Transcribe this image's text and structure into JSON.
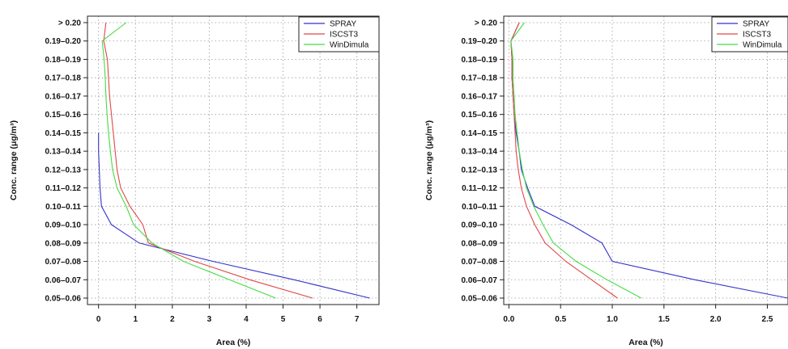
{
  "chart_data": [
    {
      "type": "line",
      "ylabel": "Conc. range (μg/m³)",
      "xlabel": "Area (%)",
      "categories": [
        "0.05–0.06",
        "0.06–0.07",
        "0.07–0.08",
        "0.08–0.09",
        "0.09–0.10",
        "0.10–0.11",
        "0.11–0.12",
        "0.12–0.13",
        "0.13–0.14",
        "0.14–0.15",
        "0.15–0.16",
        "0.16–0.17",
        "0.17–0.18",
        "0.18–0.19",
        "0.19–0.20",
        "> 0.20"
      ],
      "xticks": [
        "0",
        "1",
        "2",
        "3",
        "4",
        "5",
        "6",
        "7"
      ],
      "xtick_values": [
        0,
        1,
        2,
        3,
        4,
        5,
        6,
        7
      ],
      "xlim": [
        -0.3,
        7.6
      ],
      "grid": true,
      "legend_position": "top-right",
      "series": [
        {
          "name": "SPRAY",
          "color": "#3333cc",
          "values": [
            7.35,
            5.3,
            3.1,
            1.1,
            0.35,
            0.08,
            0.04,
            0.02,
            0.0,
            0.0,
            null,
            null,
            null,
            null,
            null,
            null
          ]
        },
        {
          "name": "ISCST3",
          "color": "#e04848",
          "values": [
            5.8,
            4.1,
            2.6,
            1.35,
            1.2,
            0.85,
            0.6,
            0.5,
            0.45,
            0.4,
            0.35,
            0.3,
            0.27,
            0.24,
            0.14,
            0.2
          ]
        },
        {
          "name": "WinDimula",
          "color": "#44dd44",
          "values": [
            4.8,
            3.55,
            2.3,
            1.45,
            0.95,
            0.75,
            0.5,
            0.38,
            0.32,
            0.27,
            0.23,
            0.2,
            0.18,
            0.15,
            0.1,
            0.75
          ]
        }
      ]
    },
    {
      "type": "line",
      "ylabel": "Conc. range (μg/m³)",
      "xlabel": "Area (%)",
      "categories": [
        "0.05–0.06",
        "0.06–0.07",
        "0.07–0.08",
        "0.08–0.09",
        "0.09–0.10",
        "0.10–0.11",
        "0.11–0.12",
        "0.12–0.13",
        "0.13–0.14",
        "0.14–0.15",
        "0.15–0.16",
        "0.16–0.17",
        "0.17–0.18",
        "0.18–0.19",
        "0.19–0.20",
        "> 0.20"
      ],
      "xticks": [
        "0.0",
        "0.5",
        "1.0",
        "1.5",
        "2.0",
        "2.5"
      ],
      "xtick_values": [
        0,
        0.5,
        1,
        1.5,
        2,
        2.5
      ],
      "xlim": [
        -0.05,
        2.7
      ],
      "grid": true,
      "legend_position": "top-right",
      "series": [
        {
          "name": "SPRAY",
          "color": "#3333cc",
          "values": [
            2.7,
            1.8,
            1.0,
            0.9,
            0.6,
            0.25,
            0.18,
            0.12,
            0.1,
            0.07,
            0.05,
            0.04,
            0.03,
            0.03,
            0.02,
            0.1
          ]
        },
        {
          "name": "ISCST3",
          "color": "#e04848",
          "values": [
            1.05,
            0.8,
            0.55,
            0.35,
            0.25,
            0.17,
            0.12,
            0.09,
            0.07,
            0.06,
            0.05,
            0.04,
            0.03,
            0.03,
            0.02,
            0.1
          ]
        },
        {
          "name": "WinDimula",
          "color": "#44dd44",
          "values": [
            1.28,
            0.95,
            0.65,
            0.43,
            0.33,
            0.24,
            0.17,
            0.13,
            0.1,
            0.08,
            0.06,
            0.05,
            0.04,
            0.04,
            0.02,
            0.15
          ]
        }
      ]
    }
  ]
}
